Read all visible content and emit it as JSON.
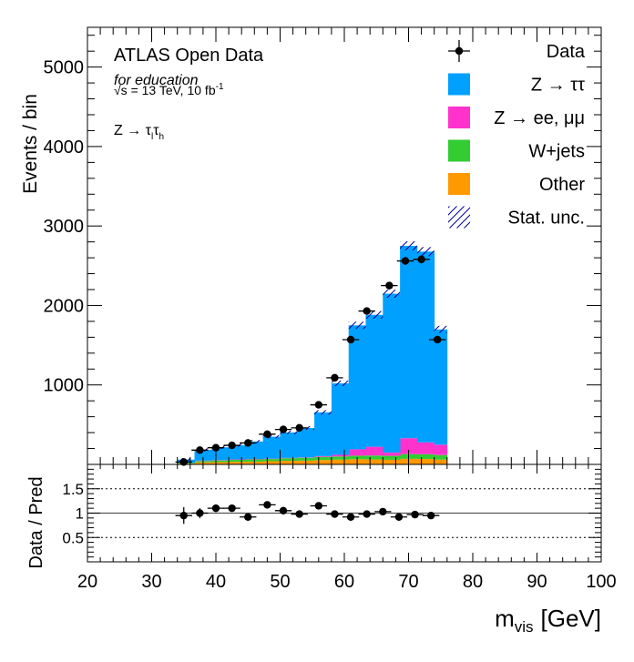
{
  "chart_data": [
    {
      "type": "stacked-histogram",
      "labels": {
        "experiment": "ATLAS Open Data",
        "note": "for education",
        "energy_prefix": "√s = 13 TeV, 10 fb",
        "energy_sup": "-1",
        "channel_prefix": "Z → τ",
        "channel_sub1": "l",
        "channel_mid": "τ",
        "channel_sub2": "h"
      },
      "ylabel": "Events / bin",
      "xlabel_main": "m",
      "xlabel_sub": "vis",
      "xlabel_unit": "[GeV]",
      "xlim": [
        20,
        100
      ],
      "ylim": [
        0,
        5500
      ],
      "yticks": [
        1000,
        2000,
        3000,
        4000,
        5000
      ],
      "ytick_labels": [
        "1000",
        "2000",
        "3000",
        "4000",
        "5000"
      ],
      "legend_position": "top-right",
      "colors": {
        "ztautau": "#00a0ff",
        "zll": "#ff33cc",
        "wjets": "#33cc33",
        "other": "#ff9900",
        "data": "#000000",
        "unc": "#000099"
      },
      "legend": [
        {
          "key": "data",
          "label": "Data"
        },
        {
          "key": "ztautau",
          "label": "Z → ττ"
        },
        {
          "key": "zll",
          "label": "Z → ee, μμ"
        },
        {
          "key": "wjets",
          "label": "W+jets"
        },
        {
          "key": "other",
          "label": "Other"
        },
        {
          "key": "unc",
          "label": "Stat. unc."
        }
      ],
      "bin_edges": [
        34,
        36.67,
        39.33,
        42,
        44.67,
        47.33,
        50,
        52.67,
        55.33,
        58,
        60.67,
        63.33,
        66,
        68.67,
        71.33,
        74,
        76
      ],
      "series": [
        {
          "key": "other",
          "values": [
            10,
            25,
            28,
            33,
            35,
            40,
            45,
            48,
            55,
            60,
            65,
            62,
            58,
            70,
            68,
            60
          ]
        },
        {
          "key": "wjets",
          "values": [
            8,
            18,
            22,
            25,
            28,
            28,
            32,
            35,
            40,
            40,
            45,
            50,
            50,
            60,
            60,
            58
          ]
        },
        {
          "key": "zll",
          "values": [
            2,
            5,
            5,
            5,
            5,
            5,
            5,
            5,
            10,
            20,
            80,
            110,
            40,
            200,
            150,
            130
          ]
        },
        {
          "key": "ztautau",
          "values": [
            40,
            135,
            160,
            180,
            220,
            275,
            320,
            370,
            550,
            900,
            1560,
            1660,
            2000,
            2420,
            2400,
            1450
          ]
        }
      ],
      "data": {
        "x": [
          35.0,
          37.5,
          40.0,
          42.5,
          45.0,
          48.0,
          50.5,
          53.0,
          56.0,
          58.5,
          61.0,
          63.5,
          67.0,
          69.5,
          72.0,
          74.5
        ],
        "y": [
          30,
          180,
          210,
          240,
          270,
          380,
          440,
          460,
          750,
          1090,
          1570,
          1930,
          2250,
          2560,
          2580,
          1570
        ],
        "xerr": [
          1.3,
          1.3,
          1.3,
          1.3,
          1.3,
          1.3,
          1.3,
          1.3,
          1.3,
          1.3,
          1.3,
          1.3,
          1.3,
          1.3,
          1.3,
          1.3
        ]
      }
    },
    {
      "type": "ratio",
      "ylabel": "Data / Pred",
      "ylim": [
        0,
        2
      ],
      "yticks": [
        0.5,
        1,
        1.5
      ],
      "ytick_labels": [
        "0.5",
        "1",
        "1.5"
      ],
      "xticks": [
        20,
        30,
        40,
        50,
        60,
        70,
        80,
        90,
        100
      ],
      "xtick_labels": [
        "20",
        "30",
        "40",
        "50",
        "60",
        "70",
        "80",
        "90",
        "100"
      ],
      "x": [
        35.0,
        37.5,
        40.0,
        42.5,
        45.0,
        48.0,
        50.5,
        53.0,
        56.0,
        58.5,
        61.0,
        63.5,
        66.0,
        68.5,
        71.0,
        73.5
      ],
      "y": [
        0.95,
        1.0,
        1.1,
        1.1,
        0.92,
        1.17,
        1.05,
        0.98,
        1.15,
        0.98,
        0.92,
        0.98,
        1.03,
        0.92,
        0.97,
        0.95
      ],
      "yerr": [
        0.17,
        0.1,
        0.08,
        0.07,
        0.06,
        0.06,
        0.05,
        0.05,
        0.05,
        0.04,
        0.03,
        0.03,
        0.03,
        0.03,
        0.03,
        0.03
      ],
      "xerr": [
        1.3,
        1.3,
        1.3,
        1.3,
        1.3,
        1.3,
        1.3,
        1.3,
        1.3,
        1.3,
        1.3,
        1.3,
        1.3,
        1.3,
        1.3,
        1.3
      ]
    }
  ]
}
